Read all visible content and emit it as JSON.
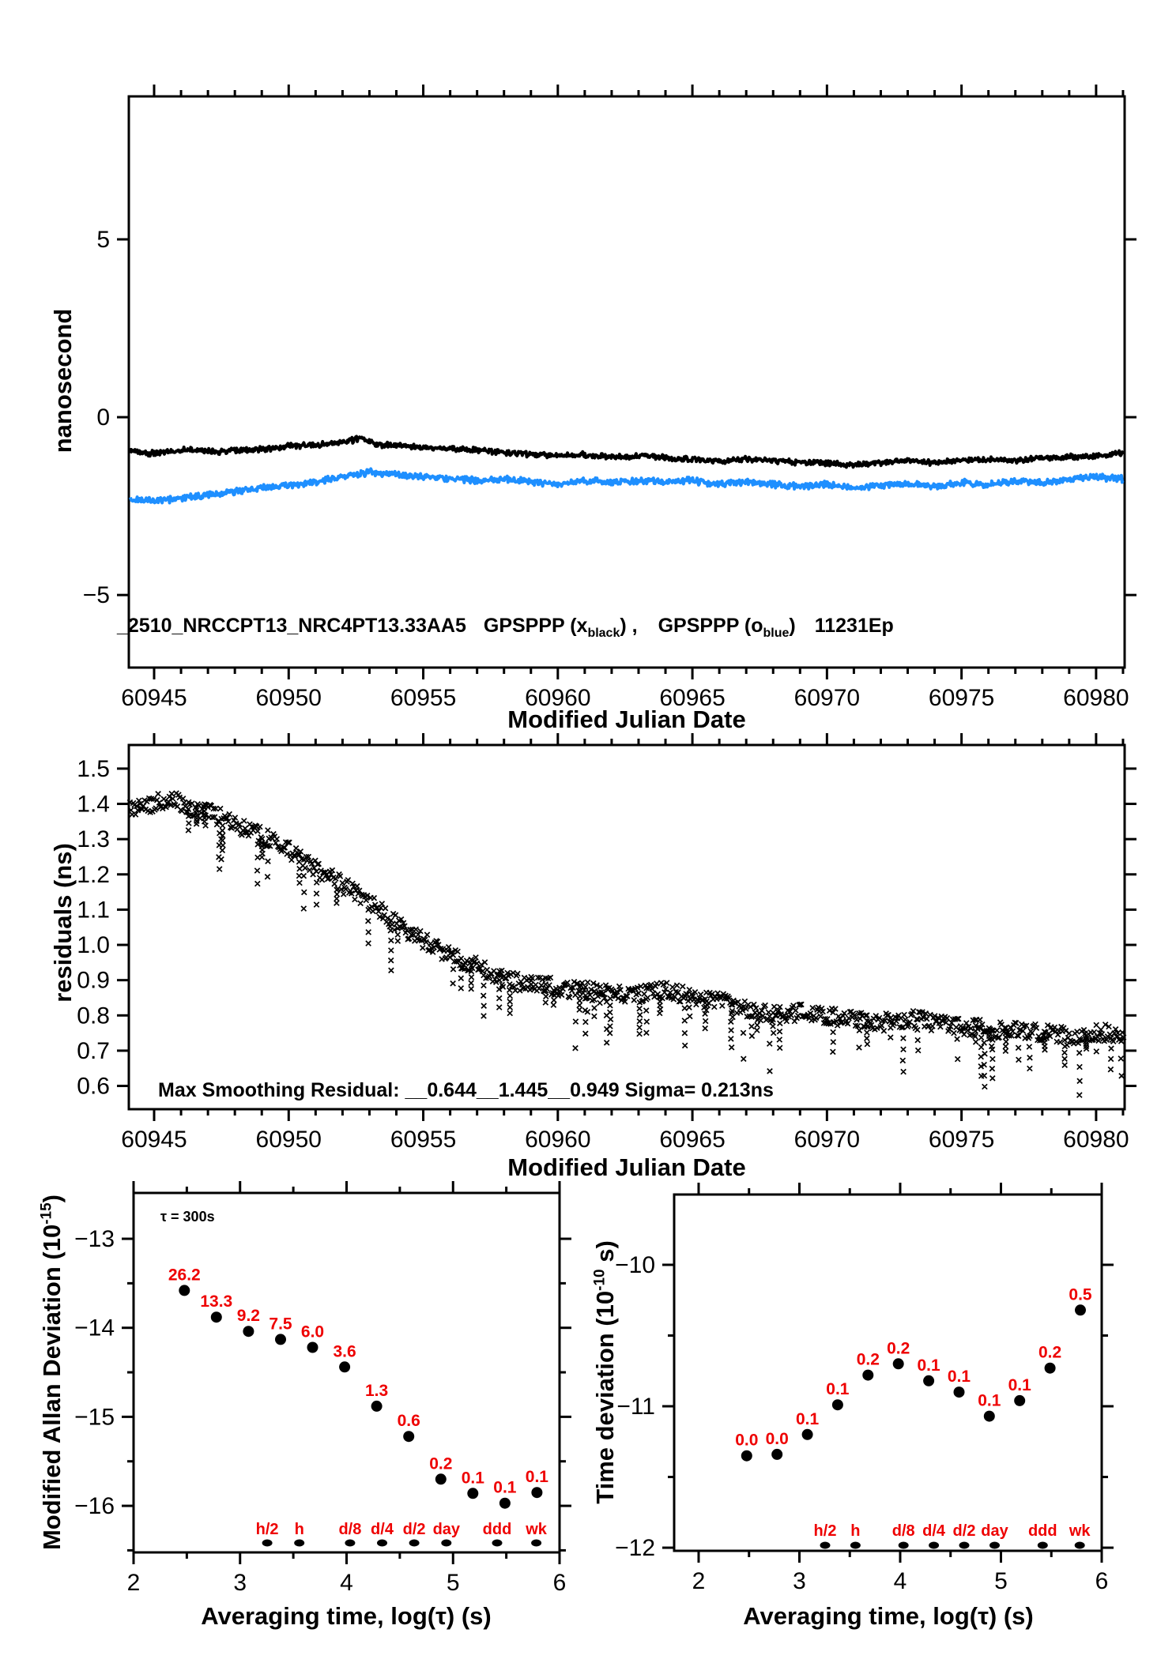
{
  "page": {
    "background": "#ffffff"
  },
  "colors": {
    "black": "#000000",
    "blue": "#1e8fff",
    "red": "#ee0000"
  },
  "chart_data": [
    {
      "type": "line",
      "name": "clock-comparison-time-series",
      "xlabel": "Modified Julian Date",
      "ylabel": "nanosecond",
      "xlim": [
        60944.06,
        60981.06
      ],
      "ylim": [
        -7.04,
        9.02
      ],
      "xticks_major": [
        60945,
        60950,
        60955,
        60960,
        60965,
        60970,
        60975,
        60980
      ],
      "xtick_minor_step": 1,
      "yticks": [
        -5,
        0,
        5
      ],
      "grid": false,
      "annotation": {
        "id": "_2510_NRCCPT13_NRC4PT13.33AA5",
        "s1": "GPSPPP (x",
        "sub1": "black",
        "s2": ") ,",
        "s3": "GPSPPP (o",
        "sub2": "blue",
        "s4": ")",
        "s5": "11231Ep"
      },
      "series": [
        {
          "name": "GPSPPP x (black)",
          "color": "#000000",
          "marker": "x",
          "noise_amp": 0.12,
          "anchors": [
            [
              60944.1,
              -0.95
            ],
            [
              60945,
              -1.02
            ],
            [
              60945.8,
              -0.95
            ],
            [
              60946.5,
              -0.9
            ],
            [
              60947.3,
              -0.98
            ],
            [
              60948,
              -0.93
            ],
            [
              60949,
              -0.9
            ],
            [
              60950,
              -0.82
            ],
            [
              60951,
              -0.78
            ],
            [
              60952,
              -0.72
            ],
            [
              60952.7,
              -0.58
            ],
            [
              60953.2,
              -0.75
            ],
            [
              60954,
              -0.8
            ],
            [
              60955,
              -0.85
            ],
            [
              60956,
              -0.88
            ],
            [
              60957,
              -0.92
            ],
            [
              60958,
              -1.0
            ],
            [
              60959,
              -1.05
            ],
            [
              60960,
              -1.08
            ],
            [
              60961,
              -1.05
            ],
            [
              60962,
              -1.12
            ],
            [
              60963,
              -1.08
            ],
            [
              60964,
              -1.14
            ],
            [
              60965,
              -1.18
            ],
            [
              60966,
              -1.25
            ],
            [
              60967,
              -1.18
            ],
            [
              60968,
              -1.22
            ],
            [
              60969,
              -1.28
            ],
            [
              60970,
              -1.28
            ],
            [
              60971,
              -1.35
            ],
            [
              60972,
              -1.28
            ],
            [
              60973,
              -1.22
            ],
            [
              60974,
              -1.28
            ],
            [
              60975,
              -1.22
            ],
            [
              60976,
              -1.18
            ],
            [
              60977,
              -1.22
            ],
            [
              60978,
              -1.15
            ],
            [
              60979,
              -1.12
            ],
            [
              60980,
              -1.1
            ],
            [
              60981,
              -1.02
            ]
          ]
        },
        {
          "name": "GPSPPP o (blue)",
          "color": "#1e8fff",
          "marker": "o",
          "noise_amp": 0.14,
          "anchors": [
            [
              60944.1,
              -2.3
            ],
            [
              60945,
              -2.35
            ],
            [
              60946,
              -2.28
            ],
            [
              60947,
              -2.18
            ],
            [
              60948,
              -2.1
            ],
            [
              60949,
              -2.0
            ],
            [
              60950,
              -1.92
            ],
            [
              60951,
              -1.82
            ],
            [
              60952,
              -1.68
            ],
            [
              60953,
              -1.55
            ],
            [
              60954,
              -1.62
            ],
            [
              60955,
              -1.68
            ],
            [
              60956,
              -1.72
            ],
            [
              60957,
              -1.78
            ],
            [
              60958,
              -1.72
            ],
            [
              60959,
              -1.82
            ],
            [
              60960,
              -1.88
            ],
            [
              60961,
              -1.78
            ],
            [
              60962,
              -1.84
            ],
            [
              60963,
              -1.78
            ],
            [
              60964,
              -1.84
            ],
            [
              60965,
              -1.78
            ],
            [
              60966,
              -1.88
            ],
            [
              60967,
              -1.82
            ],
            [
              60968,
              -1.88
            ],
            [
              60969,
              -1.94
            ],
            [
              60970,
              -1.88
            ],
            [
              60971,
              -1.98
            ],
            [
              60972,
              -1.92
            ],
            [
              60973,
              -1.88
            ],
            [
              60974,
              -1.94
            ],
            [
              60975,
              -1.84
            ],
            [
              60976,
              -1.9
            ],
            [
              60977,
              -1.8
            ],
            [
              60978,
              -1.84
            ],
            [
              60979,
              -1.74
            ],
            [
              60980,
              -1.68
            ],
            [
              60981,
              -1.74
            ]
          ]
        }
      ]
    },
    {
      "type": "scatter",
      "name": "smoothing-residuals",
      "xlabel": "Modified Julian Date",
      "ylabel": "residuals (ns)",
      "xlim": [
        60944.06,
        60981.06
      ],
      "ylim": [
        0.534,
        1.567
      ],
      "xticks_major": [
        60945,
        60950,
        60955,
        60960,
        60965,
        60970,
        60975,
        60980
      ],
      "xtick_minor_step": 1,
      "yticks": [
        0.6,
        0.7,
        0.8,
        0.9,
        1.0,
        1.1,
        1.2,
        1.3,
        1.4,
        1.5
      ],
      "grid": false,
      "annotation": "Max Smoothing Residual: __0.644__1.445__0.949  Sigma= 0.213ns",
      "series": [
        {
          "name": "residuals x (black)",
          "color": "#000000",
          "marker": "x",
          "noise_amp": 0.05,
          "spike_depth": 0.13,
          "anchors": [
            [
              60944.1,
              1.39
            ],
            [
              60945,
              1.4
            ],
            [
              60945.6,
              1.42
            ],
            [
              60946.3,
              1.38
            ],
            [
              60947,
              1.38
            ],
            [
              60948,
              1.34
            ],
            [
              60949,
              1.31
            ],
            [
              60950,
              1.27
            ],
            [
              60951,
              1.22
            ],
            [
              60952,
              1.17
            ],
            [
              60953,
              1.12
            ],
            [
              60954,
              1.06
            ],
            [
              60955,
              1.01
            ],
            [
              60956,
              0.97
            ],
            [
              60957,
              0.94
            ],
            [
              60958,
              0.9
            ],
            [
              60959,
              0.89
            ],
            [
              60960,
              0.88
            ],
            [
              60961,
              0.87
            ],
            [
              60962,
              0.86
            ],
            [
              60963,
              0.86
            ],
            [
              60964,
              0.87
            ],
            [
              60965,
              0.85
            ],
            [
              60966,
              0.84
            ],
            [
              60967,
              0.82
            ],
            [
              60968,
              0.8
            ],
            [
              60969,
              0.81
            ],
            [
              60970,
              0.8
            ],
            [
              60971,
              0.79
            ],
            [
              60972,
              0.78
            ],
            [
              60973,
              0.79
            ],
            [
              60974,
              0.78
            ],
            [
              60975,
              0.77
            ],
            [
              60976,
              0.76
            ],
            [
              60977,
              0.76
            ],
            [
              60978,
              0.75
            ],
            [
              60979,
              0.74
            ],
            [
              60980,
              0.75
            ],
            [
              60981,
              0.75
            ]
          ]
        }
      ]
    },
    {
      "type": "scatter",
      "name": "modified-allan-deviation",
      "xlabel": "Averaging time, log(τ) (s)",
      "ylabel_main": "Modified Allan Deviation (10",
      "ylabel_sup": "-15",
      "ylabel_tail": ")",
      "tau_annotation": "τ = 300s",
      "xlim": [
        2,
        6
      ],
      "ylim": [
        -16.523,
        -12.485
      ],
      "xticks_major": [
        2,
        3,
        4,
        5,
        6
      ],
      "xticks_minor": [
        2.5,
        3.5,
        4.5,
        5.5
      ],
      "yticks_major": [
        -16,
        -15,
        -14,
        -13
      ],
      "yticks_minor": [
        -16.5,
        -15.5,
        -14.5,
        -13.5,
        -12.5
      ],
      "grid": false,
      "point_color": "#000000",
      "label_color": "#ee0000",
      "x": [
        2.477,
        2.778,
        3.079,
        3.38,
        3.681,
        3.982,
        4.283,
        4.584,
        4.885,
        5.186,
        5.487,
        5.788
      ],
      "y": [
        -13.58,
        -13.88,
        -14.04,
        -14.13,
        -14.22,
        -14.44,
        -14.88,
        -15.22,
        -15.7,
        -15.86,
        -15.97,
        -15.85
      ],
      "point_labels": [
        "26.2",
        "13.3",
        "9.2",
        "7.5",
        "6.0",
        "3.6",
        "1.3",
        "0.6",
        "0.2",
        "0.1",
        "0.1",
        "0.1"
      ],
      "time_markers": {
        "labels": [
          "h/2",
          "h",
          "d/8",
          "d/4",
          "d/2",
          "day",
          "ddd",
          "wk"
        ],
        "x": [
          3.255,
          3.556,
          4.033,
          4.334,
          4.635,
          4.937,
          5.414,
          5.782
        ]
      }
    },
    {
      "type": "scatter",
      "name": "time-deviation",
      "xlabel": "Averaging time, log(τ) (s)",
      "ylabel_main": "Time deviation (10",
      "ylabel_sup": "-10",
      "ylabel_tail": " s)",
      "xlim": [
        1.757,
        6.0
      ],
      "ylim": [
        -12.022,
        -9.503
      ],
      "xticks_major": [
        2,
        3,
        4,
        5,
        6
      ],
      "xticks_minor": [
        2.5,
        3.5,
        4.5,
        5.5
      ],
      "yticks_major": [
        -12,
        -11,
        -10
      ],
      "yticks_minor": [
        -11.5,
        -10.5
      ],
      "grid": false,
      "point_color": "#000000",
      "label_color": "#ee0000",
      "x": [
        2.477,
        2.778,
        3.079,
        3.38,
        3.681,
        3.982,
        4.283,
        4.584,
        4.885,
        5.186,
        5.487,
        5.788
      ],
      "y": [
        -11.35,
        -11.34,
        -11.2,
        -10.99,
        -10.78,
        -10.7,
        -10.82,
        -10.9,
        -11.07,
        -10.96,
        -10.73,
        -10.32
      ],
      "point_labels": [
        "0.0",
        "0.0",
        "0.1",
        "0.1",
        "0.2",
        "0.2",
        "0.1",
        "0.1",
        "0.1",
        "0.1",
        "0.2",
        "0.5"
      ],
      "time_markers": {
        "labels": [
          "h/2",
          "h",
          "d/8",
          "d/4",
          "d/2",
          "day",
          "ddd",
          "wk"
        ],
        "x": [
          3.255,
          3.556,
          4.033,
          4.334,
          4.635,
          4.937,
          5.414,
          5.782
        ]
      }
    }
  ]
}
